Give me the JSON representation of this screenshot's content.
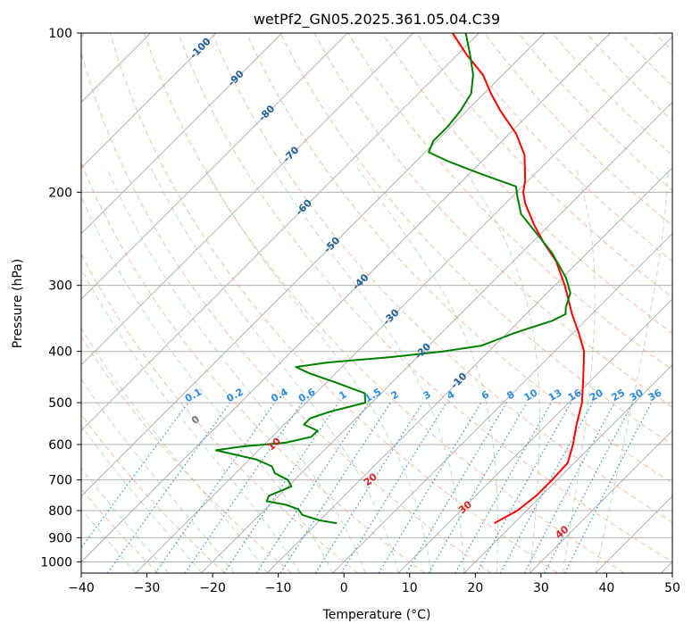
{
  "chart_data": {
    "type": "line",
    "title": "wetPf2_GN05.2025.361.05.04.C39",
    "xlabel": "Temperature (°C)",
    "ylabel": "Pressure (hPa)",
    "xlim": [
      -40,
      50
    ],
    "ylim": [
      1050,
      100
    ],
    "y_scale": "log",
    "grid": true,
    "x_ticks": [
      -40,
      -30,
      -20,
      -10,
      0,
      10,
      20,
      30,
      40,
      50
    ],
    "y_ticks": [
      100,
      200,
      300,
      400,
      500,
      600,
      700,
      800,
      900,
      1000
    ],
    "skew_isotherm_labels": [
      -100,
      -90,
      -80,
      -70,
      -60,
      -50,
      -40,
      -30,
      -20,
      -10
    ],
    "mixing_ratio_labels": [
      "0.1",
      "0.2",
      "0.4",
      "0.6",
      "1",
      "1.5",
      "2",
      "3",
      "4",
      "6",
      "8",
      "10",
      "13",
      "16",
      "20",
      "25",
      "30",
      "36"
    ],
    "dry_adiabat_labels": [
      0,
      10,
      20,
      30,
      40
    ],
    "series": [
      {
        "color": "#ff0000",
        "points": [
          {
            "p": 845,
            "t": 17.0
          },
          {
            "p": 800,
            "t": 18.6
          },
          {
            "p": 750,
            "t": 19.2
          },
          {
            "p": 700,
            "t": 19.2
          },
          {
            "p": 650,
            "t": 19.0
          },
          {
            "p": 600,
            "t": 17.0
          },
          {
            "p": 550,
            "t": 14.5
          },
          {
            "p": 500,
            "t": 12.0
          },
          {
            "p": 450,
            "t": 8.5
          },
          {
            "p": 400,
            "t": 4.5
          },
          {
            "p": 370,
            "t": 1.0
          },
          {
            "p": 340,
            "t": -3.0
          },
          {
            "p": 300,
            "t": -8.5
          },
          {
            "p": 270,
            "t": -13.5
          },
          {
            "p": 250,
            "t": -18.0
          },
          {
            "p": 230,
            "t": -22.5
          },
          {
            "p": 210,
            "t": -27.0
          },
          {
            "p": 200,
            "t": -29.0
          },
          {
            "p": 190,
            "t": -30.5
          },
          {
            "p": 170,
            "t": -34.5
          },
          {
            "p": 155,
            "t": -39.0
          },
          {
            "p": 140,
            "t": -45.0
          },
          {
            "p": 130,
            "t": -49.0
          },
          {
            "p": 120,
            "t": -53.0
          },
          {
            "p": 110,
            "t": -58.5
          },
          {
            "p": 100,
            "t": -64.0
          }
        ]
      },
      {
        "color": "#008000",
        "points": [
          {
            "p": 845,
            "t": -7.0
          },
          {
            "p": 835,
            "t": -10.0
          },
          {
            "p": 815,
            "t": -13.5
          },
          {
            "p": 795,
            "t": -15.0
          },
          {
            "p": 780,
            "t": -17.5
          },
          {
            "p": 768,
            "t": -21.0
          },
          {
            "p": 750,
            "t": -21.5
          },
          {
            "p": 720,
            "t": -19.5
          },
          {
            "p": 700,
            "t": -21.0
          },
          {
            "p": 680,
            "t": -24.0
          },
          {
            "p": 660,
            "t": -25.5
          },
          {
            "p": 640,
            "t": -29.0
          },
          {
            "p": 625,
            "t": -33.5
          },
          {
            "p": 615,
            "t": -36.5
          },
          {
            "p": 605,
            "t": -33.0
          },
          {
            "p": 595,
            "t": -27.0
          },
          {
            "p": 580,
            "t": -24.0
          },
          {
            "p": 565,
            "t": -24.0
          },
          {
            "p": 550,
            "t": -27.0
          },
          {
            "p": 535,
            "t": -27.0
          },
          {
            "p": 520,
            "t": -25.0
          },
          {
            "p": 500,
            "t": -21.0
          },
          {
            "p": 480,
            "t": -22.5
          },
          {
            "p": 460,
            "t": -28.0
          },
          {
            "p": 440,
            "t": -34.0
          },
          {
            "p": 428,
            "t": -37.0
          },
          {
            "p": 420,
            "t": -33.0
          },
          {
            "p": 410,
            "t": -24.0
          },
          {
            "p": 400,
            "t": -17.0
          },
          {
            "p": 390,
            "t": -12.0
          },
          {
            "p": 380,
            "t": -10.5
          },
          {
            "p": 370,
            "t": -9.0
          },
          {
            "p": 362,
            "t": -7.5
          },
          {
            "p": 350,
            "t": -5.0
          },
          {
            "p": 340,
            "t": -4.0
          },
          {
            "p": 330,
            "t": -5.0
          },
          {
            "p": 310,
            "t": -6.5
          },
          {
            "p": 290,
            "t": -9.5
          },
          {
            "p": 260,
            "t": -15.5
          },
          {
            "p": 240,
            "t": -20.5
          },
          {
            "p": 220,
            "t": -26.0
          },
          {
            "p": 205,
            "t": -29.0
          },
          {
            "p": 195,
            "t": -31.0
          },
          {
            "p": 185,
            "t": -38.0
          },
          {
            "p": 175,
            "t": -45.0
          },
          {
            "p": 168,
            "t": -49.5
          },
          {
            "p": 160,
            "t": -50.5
          },
          {
            "p": 150,
            "t": -50.5
          },
          {
            "p": 140,
            "t": -51.0
          },
          {
            "p": 130,
            "t": -52.0
          },
          {
            "p": 120,
            "t": -54.5
          },
          {
            "p": 110,
            "t": -58.0
          },
          {
            "p": 100,
            "t": -62.0
          }
        ]
      }
    ]
  }
}
